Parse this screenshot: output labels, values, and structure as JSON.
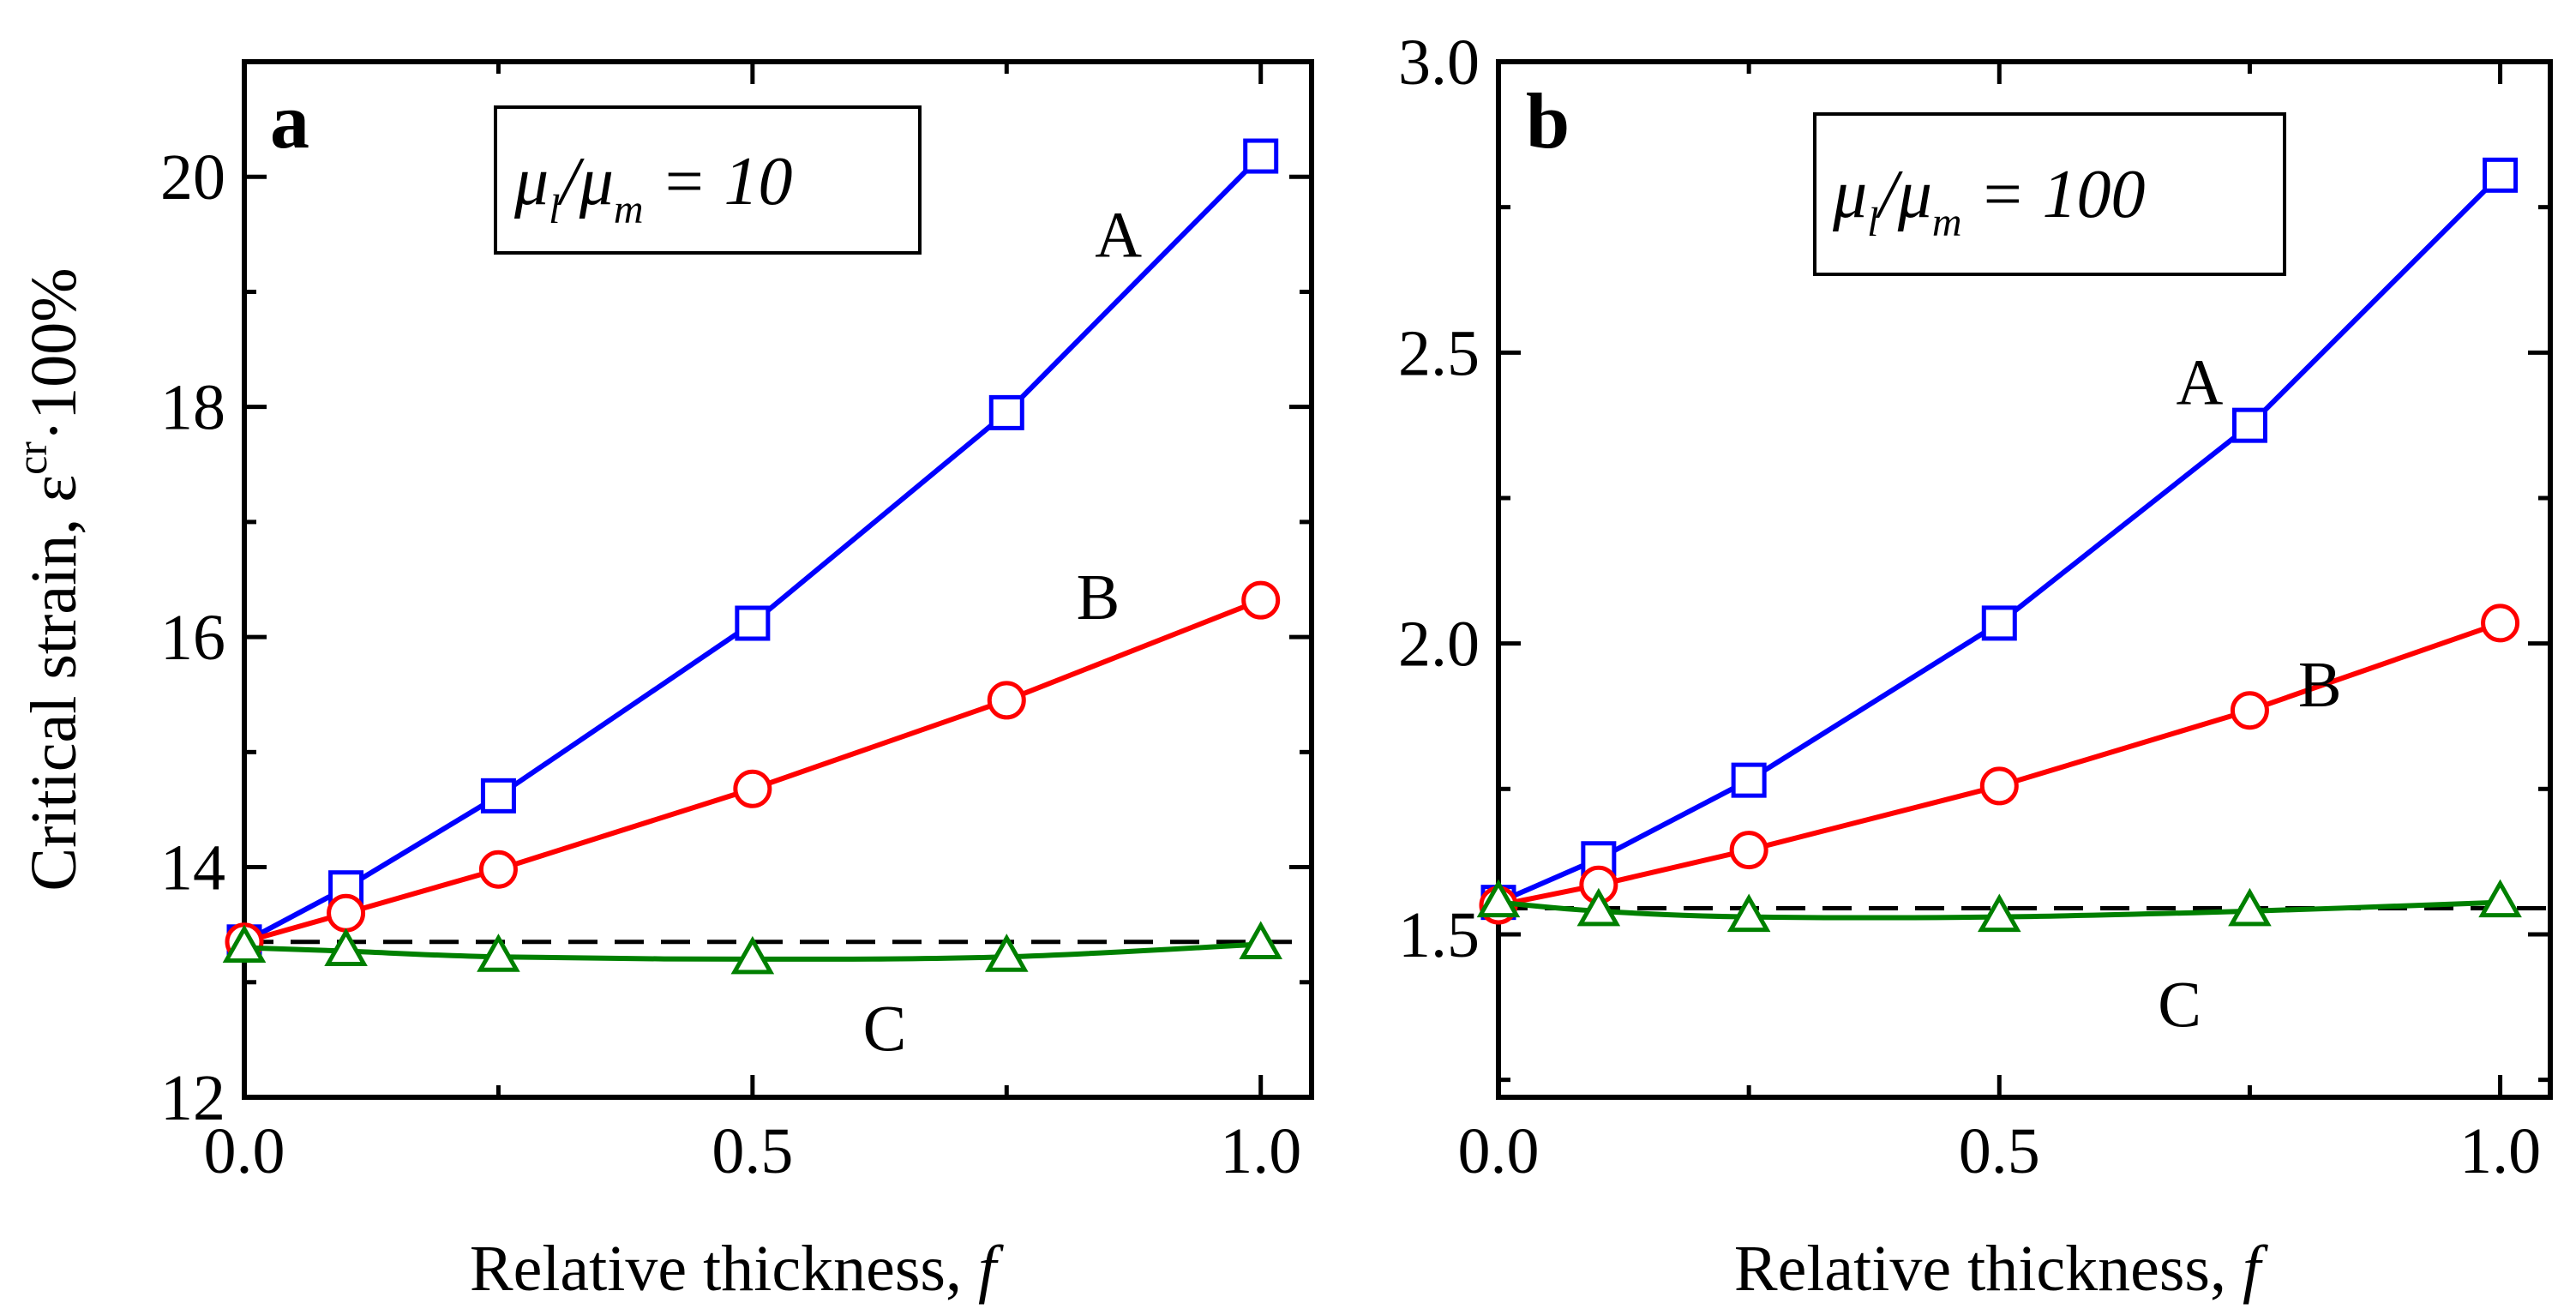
{
  "chart_data": [
    {
      "type": "line",
      "panel_label": "a",
      "ratio_box": {
        "mu1": "μ",
        "sub1": "l",
        "slash": "/",
        "mu2": "μ",
        "sub2": "m",
        "rest": " = 10"
      },
      "xlabel": "Relative thickness, ",
      "xlabel_var": "f",
      "ylabel": "Critical strain, ε",
      "ylabel_sup": "cr",
      "ylabel_tail": "·100%",
      "xlim": [
        0,
        1.05
      ],
      "ylim": [
        12,
        21
      ],
      "xticks": [
        0.0,
        0.5,
        1.0
      ],
      "xtick_labels": [
        "0.0",
        "0.5",
        "1.0"
      ],
      "yticks": [
        12,
        14,
        16,
        18,
        20
      ],
      "ytick_labels": [
        "12",
        "14",
        "16",
        "18",
        "20"
      ],
      "reference_line": {
        "y": 13.35,
        "style": "dashed",
        "color": "#000000"
      },
      "series": [
        {
          "name": "A",
          "color": "#0000ff",
          "marker": "square",
          "x": [
            0,
            0.1,
            0.25,
            0.5,
            0.75,
            1.0
          ],
          "y": [
            13.35,
            13.82,
            14.62,
            16.12,
            17.95,
            20.18
          ],
          "label_at": [
            0.86,
            19.5
          ]
        },
        {
          "name": "B",
          "color": "#ff0000",
          "marker": "circle",
          "x": [
            0,
            0.1,
            0.25,
            0.5,
            0.75,
            1.0
          ],
          "y": [
            13.35,
            13.6,
            13.98,
            14.68,
            15.45,
            16.32
          ],
          "label_at": [
            0.84,
            16.35
          ]
        },
        {
          "name": "C",
          "color": "#008000",
          "marker": "triangle",
          "x": [
            0,
            0.1,
            0.25,
            0.5,
            0.75,
            1.0
          ],
          "y": [
            13.3,
            13.27,
            13.22,
            13.2,
            13.22,
            13.33
          ],
          "label_at": [
            0.63,
            12.6
          ]
        }
      ]
    },
    {
      "type": "line",
      "panel_label": "b",
      "ratio_box": {
        "mu1": "μ",
        "sub1": "l",
        "slash": "/",
        "mu2": "μ",
        "sub2": "m",
        "rest": " = 100"
      },
      "xlabel": "Relative thickness, ",
      "xlabel_var": "f",
      "xlim": [
        0,
        1.05
      ],
      "ylim": [
        1.22,
        3.0
      ],
      "xticks": [
        0.0,
        0.5,
        1.0
      ],
      "xtick_labels": [
        "0.0",
        "0.5",
        "1.0"
      ],
      "yticks": [
        1.5,
        2.0,
        2.5,
        3.0
      ],
      "ytick_labels": [
        "1.5",
        "2.0",
        "2.5",
        "3.0"
      ],
      "reference_line": {
        "y": 1.545,
        "style": "dashed",
        "color": "#000000"
      },
      "series": [
        {
          "name": "A",
          "color": "#0000ff",
          "marker": "square",
          "x": [
            0,
            0.1,
            0.25,
            0.5,
            0.75,
            1.0
          ],
          "y": [
            1.555,
            1.63,
            1.765,
            2.035,
            2.375,
            2.805
          ],
          "label_at": [
            0.7,
            2.45
          ]
        },
        {
          "name": "B",
          "color": "#ff0000",
          "marker": "circle",
          "x": [
            0,
            0.1,
            0.25,
            0.5,
            0.75,
            1.0
          ],
          "y": [
            1.55,
            1.585,
            1.645,
            1.755,
            1.885,
            2.035
          ],
          "label_at": [
            0.82,
            1.93
          ]
        },
        {
          "name": "C",
          "color": "#008000",
          "marker": "triangle",
          "x": [
            0,
            0.1,
            0.25,
            0.5,
            0.75,
            1.0
          ],
          "y": [
            1.555,
            1.54,
            1.53,
            1.53,
            1.54,
            1.555
          ],
          "label_at": [
            0.68,
            1.38
          ]
        }
      ]
    }
  ]
}
